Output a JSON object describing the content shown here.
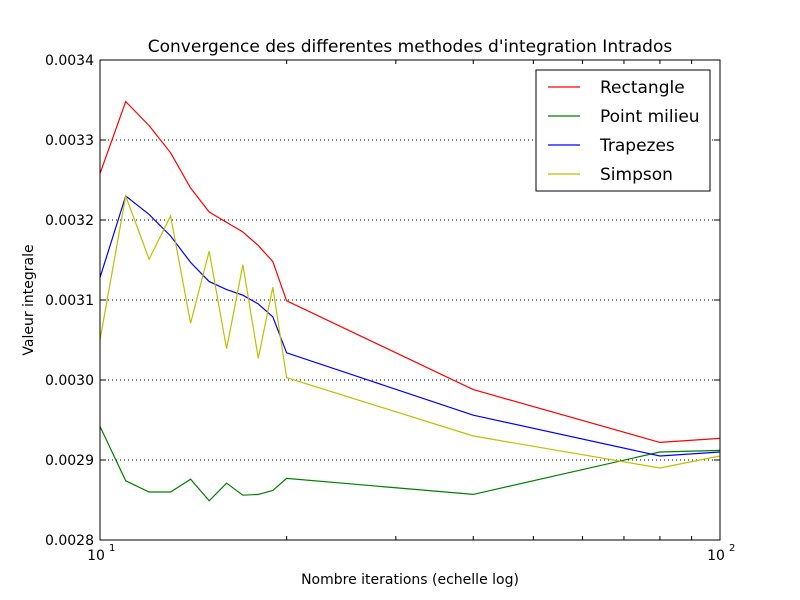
{
  "chart_data": {
    "type": "line",
    "title": "Convergence des differentes methodes d'integration Intrados",
    "xlabel": "Nombre iterations (echelle log)",
    "ylabel": "Valeur integrale",
    "xscale": "log",
    "xlim": [
      10,
      100
    ],
    "ylim": [
      0.0028,
      0.0034
    ],
    "xticks": [
      {
        "value": 10,
        "base": "10",
        "exp": "1"
      },
      {
        "value": 100,
        "base": "10",
        "exp": "2"
      }
    ],
    "yticks": [
      "0.0028",
      "0.0029",
      "0.0030",
      "0.0031",
      "0.0032",
      "0.0033",
      "0.0034"
    ],
    "grid": "y-dotted",
    "legend": "top-right",
    "x": [
      10,
      11,
      12,
      13,
      14,
      15,
      16,
      17,
      18,
      19,
      20,
      40,
      80,
      100
    ],
    "series": [
      {
        "name": "Rectangle",
        "color": "#ff0000",
        "values": [
          0.003258,
          0.003348,
          0.003318,
          0.003284,
          0.00324,
          0.00321,
          0.003197,
          0.003185,
          0.003168,
          0.003148,
          0.003099,
          0.002988,
          0.002922,
          0.002927
        ]
      },
      {
        "name": "Point milieu",
        "color": "#008000",
        "values": [
          0.002942,
          0.002874,
          0.00286,
          0.00286,
          0.002876,
          0.002849,
          0.002871,
          0.002856,
          0.002857,
          0.002862,
          0.002877,
          0.002857,
          0.00291,
          0.002912
        ]
      },
      {
        "name": "Trapezes",
        "color": "#0000ff",
        "values": [
          0.003128,
          0.00323,
          0.003207,
          0.00318,
          0.003147,
          0.003123,
          0.003113,
          0.003106,
          0.003095,
          0.003079,
          0.003034,
          0.002956,
          0.002905,
          0.00291
        ]
      },
      {
        "name": "Simpson",
        "color": "#bfbf00",
        "values": [
          0.00305,
          0.00323,
          0.003151,
          0.003205,
          0.003071,
          0.003161,
          0.003039,
          0.003144,
          0.003027,
          0.003116,
          0.003003,
          0.00293,
          0.00289,
          0.002905
        ]
      }
    ]
  }
}
